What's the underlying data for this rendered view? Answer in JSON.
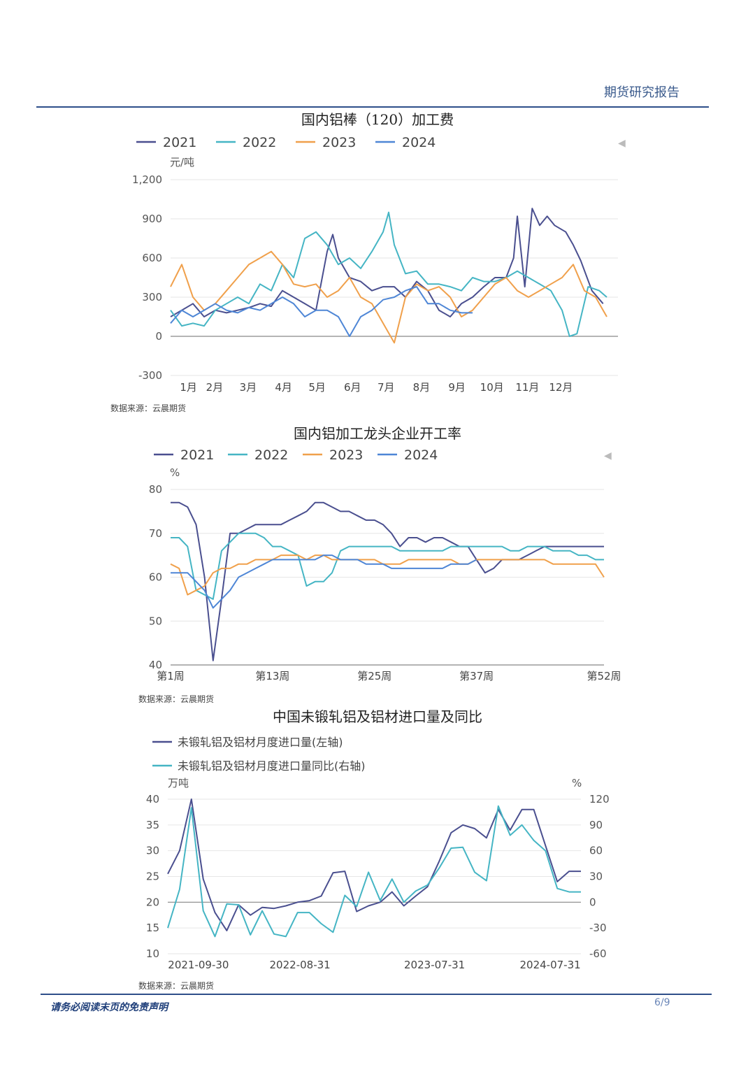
{
  "header": {
    "title": "期货研究报告"
  },
  "footer": {
    "disclaimer": "请务必阅读末页的免责声明",
    "page": "6/9"
  },
  "colors": {
    "2021": "#4a4f8f",
    "2022": "#45b5c4",
    "2023": "#f0a04b",
    "2024": "#4e86d6",
    "axis": "#999999",
    "grid": "#e6e6e6",
    "brand": "#2e4f8a"
  },
  "charts": [
    {
      "title": "国内铝棒（120）加工费",
      "unit": "元/吨",
      "source": "数据来源：云晨期货",
      "legend": [
        "2021",
        "2022",
        "2023",
        "2024"
      ],
      "arrow": "◀"
    },
    {
      "title": "国内铝加工龙头企业开工率",
      "unit": "%",
      "source": "数据来源：云晨期货",
      "legend": [
        "2021",
        "2022",
        "2023",
        "2024"
      ],
      "arrow": "◀"
    },
    {
      "title": "中国未锻轧铝及铝材进口量及同比",
      "unit_left": "万吨",
      "unit_right": "%",
      "source": "数据来源：云晨期货",
      "legend": [
        "未锻轧铝及铝材月度进口量(左轴)",
        "未锻轧铝及铝材月度进口量同比(右轴)"
      ]
    }
  ],
  "chart_data": [
    {
      "type": "line",
      "title": "国内铝棒（120）加工费",
      "ylabel": "元/吨",
      "ylim": [
        -300,
        1200
      ],
      "yticks": [
        "-300",
        "0",
        "300",
        "600",
        "900",
        "1,200"
      ],
      "x_domain": [
        0,
        12
      ],
      "xticks": [
        {
          "label": "1月",
          "x": 0.25
        },
        {
          "label": "2月",
          "x": 0.95
        },
        {
          "label": "3月",
          "x": 1.85
        },
        {
          "label": "4月",
          "x": 2.8
        },
        {
          "label": "5月",
          "x": 3.7
        },
        {
          "label": "6月",
          "x": 4.65
        },
        {
          "label": "7月",
          "x": 5.55
        },
        {
          "label": "8月",
          "x": 6.5
        },
        {
          "label": "9月",
          "x": 7.45
        },
        {
          "label": "10月",
          "x": 8.3
        },
        {
          "label": "11月",
          "x": 9.25
        },
        {
          "label": "12月",
          "x": 10.15
        }
      ],
      "grid": true,
      "legend_position": "top",
      "series": [
        {
          "name": "2021",
          "color_key": "2021",
          "x": [
            0,
            0.3,
            0.6,
            0.9,
            1.2,
            1.5,
            1.8,
            2.1,
            2.4,
            2.7,
            3.0,
            3.3,
            3.6,
            3.9,
            4.2,
            4.35,
            4.5,
            4.8,
            5.1,
            5.4,
            5.7,
            6.0,
            6.3,
            6.6,
            6.9,
            7.2,
            7.5,
            7.8,
            8.1,
            8.4,
            8.7,
            9.0,
            9.2,
            9.3,
            9.5,
            9.7,
            9.9,
            10.1,
            10.3,
            10.6,
            10.8,
            11.0,
            11.3,
            11.6
          ],
          "y": [
            150,
            200,
            250,
            150,
            200,
            180,
            200,
            220,
            250,
            230,
            350,
            300,
            250,
            200,
            650,
            780,
            600,
            450,
            420,
            350,
            380,
            380,
            300,
            420,
            350,
            200,
            150,
            250,
            300,
            380,
            450,
            450,
            600,
            920,
            380,
            980,
            850,
            920,
            850,
            800,
            700,
            580,
            350,
            250
          ]
        },
        {
          "name": "2022",
          "color_key": "2022",
          "x": [
            0,
            0.3,
            0.6,
            0.9,
            1.2,
            1.5,
            1.8,
            2.1,
            2.4,
            2.7,
            3.0,
            3.3,
            3.6,
            3.9,
            4.2,
            4.5,
            4.8,
            5.1,
            5.4,
            5.7,
            5.85,
            6.0,
            6.3,
            6.6,
            6.9,
            7.2,
            7.5,
            7.8,
            8.1,
            8.4,
            8.7,
            9.0,
            9.3,
            9.6,
            9.9,
            10.2,
            10.5,
            10.7,
            10.9,
            11.2,
            11.5,
            11.7
          ],
          "y": [
            200,
            80,
            100,
            80,
            200,
            250,
            300,
            250,
            400,
            350,
            550,
            450,
            750,
            800,
            700,
            550,
            600,
            520,
            650,
            800,
            950,
            700,
            480,
            500,
            400,
            400,
            380,
            350,
            450,
            420,
            420,
            450,
            500,
            450,
            400,
            350,
            200,
            0,
            20,
            380,
            350,
            300
          ]
        },
        {
          "name": "2023",
          "color_key": "2023",
          "x": [
            0,
            0.3,
            0.6,
            0.9,
            1.2,
            1.5,
            1.8,
            2.1,
            2.4,
            2.7,
            3.0,
            3.3,
            3.6,
            3.9,
            4.2,
            4.5,
            4.8,
            5.1,
            5.4,
            5.7,
            6.0,
            6.3,
            6.6,
            6.9,
            7.2,
            7.5,
            7.8,
            8.1,
            8.4,
            8.7,
            9.0,
            9.3,
            9.6,
            9.9,
            10.2,
            10.5,
            10.8,
            11.1,
            11.4,
            11.7
          ],
          "y": [
            380,
            550,
            300,
            200,
            250,
            350,
            450,
            550,
            600,
            650,
            550,
            400,
            380,
            400,
            300,
            350,
            450,
            300,
            250,
            100,
            -50,
            300,
            400,
            350,
            380,
            300,
            150,
            200,
            300,
            400,
            450,
            350,
            300,
            350,
            400,
            450,
            550,
            350,
            300,
            150
          ]
        },
        {
          "name": "2024",
          "color_key": "2024",
          "x": [
            0,
            0.3,
            0.6,
            0.9,
            1.2,
            1.5,
            1.8,
            2.1,
            2.4,
            2.7,
            3.0,
            3.3,
            3.6,
            3.9,
            4.2,
            4.5,
            4.8,
            5.1,
            5.4,
            5.7,
            6.0,
            6.3,
            6.6,
            6.9,
            7.2,
            7.5,
            7.8,
            8.1
          ],
          "y": [
            100,
            200,
            150,
            200,
            250,
            200,
            180,
            220,
            200,
            250,
            300,
            250,
            150,
            200,
            200,
            150,
            0,
            150,
            200,
            280,
            300,
            350,
            380,
            250,
            250,
            200,
            180,
            180
          ]
        }
      ]
    },
    {
      "type": "line",
      "title": "国内铝加工龙头企业开工率",
      "ylabel": "%",
      "ylim": [
        40,
        80
      ],
      "yticks": [
        "40",
        "50",
        "60",
        "70",
        "80"
      ],
      "x_domain": [
        1,
        52
      ],
      "xticks": [
        {
          "label": "第1周",
          "x": 1
        },
        {
          "label": "第13周",
          "x": 13
        },
        {
          "label": "第25周",
          "x": 25
        },
        {
          "label": "第37周",
          "x": 37
        },
        {
          "label": "第52周",
          "x": 52
        }
      ],
      "grid": true,
      "legend_position": "top",
      "series": [
        {
          "name": "2021",
          "color_key": "2021",
          "x": [
            1,
            2,
            3,
            4,
            5,
            6,
            7,
            8,
            9,
            10,
            11,
            12,
            13,
            14,
            15,
            16,
            17,
            18,
            19,
            20,
            21,
            22,
            23,
            24,
            25,
            26,
            27,
            28,
            29,
            30,
            31,
            32,
            33,
            34,
            35,
            36,
            37,
            38,
            39,
            40,
            41,
            42,
            43,
            44,
            45,
            46,
            47,
            48,
            49,
            50,
            51,
            52
          ],
          "y": [
            77,
            77,
            76,
            72,
            60,
            41,
            55,
            70,
            70,
            71,
            72,
            72,
            72,
            72,
            73,
            74,
            75,
            77,
            77,
            76,
            75,
            75,
            74,
            73,
            73,
            72,
            70,
            67,
            69,
            69,
            68,
            69,
            69,
            68,
            67,
            67,
            64,
            61,
            62,
            64,
            64,
            64,
            65,
            66,
            67,
            67,
            67,
            67,
            67,
            67,
            67,
            67
          ]
        },
        {
          "name": "2022",
          "color_key": "2022",
          "x": [
            1,
            2,
            3,
            4,
            5,
            6,
            7,
            8,
            9,
            10,
            11,
            12,
            13,
            14,
            15,
            16,
            17,
            18,
            19,
            20,
            21,
            22,
            23,
            24,
            25,
            26,
            27,
            28,
            29,
            30,
            31,
            32,
            33,
            34,
            35,
            36,
            37,
            38,
            39,
            40,
            41,
            42,
            43,
            44,
            45,
            46,
            47,
            48,
            49,
            50,
            51,
            52
          ],
          "y": [
            69,
            69,
            67,
            57,
            56,
            55,
            66,
            68,
            70,
            70,
            70,
            69,
            67,
            67,
            66,
            65,
            58,
            59,
            59,
            61,
            66,
            67,
            67,
            67,
            67,
            67,
            67,
            66,
            66,
            66,
            66,
            66,
            66,
            67,
            67,
            67,
            67,
            67,
            67,
            67,
            66,
            66,
            67,
            67,
            67,
            66,
            66,
            66,
            65,
            65,
            64,
            64
          ]
        },
        {
          "name": "2023",
          "color_key": "2023",
          "x": [
            1,
            2,
            3,
            4,
            5,
            6,
            7,
            8,
            9,
            10,
            11,
            12,
            13,
            14,
            15,
            16,
            17,
            18,
            19,
            20,
            21,
            22,
            23,
            24,
            25,
            26,
            27,
            28,
            29,
            30,
            31,
            32,
            33,
            34,
            35,
            36,
            37,
            38,
            39,
            40,
            41,
            42,
            43,
            44,
            45,
            46,
            47,
            48,
            49,
            50,
            51,
            52
          ],
          "y": [
            63,
            62,
            56,
            57,
            58,
            61,
            62,
            62,
            63,
            63,
            64,
            64,
            64,
            65,
            65,
            65,
            64,
            65,
            65,
            64,
            64,
            64,
            64,
            64,
            64,
            63,
            63,
            63,
            64,
            64,
            64,
            64,
            64,
            64,
            63,
            63,
            64,
            64,
            64,
            64,
            64,
            64,
            64,
            64,
            64,
            63,
            63,
            63,
            63,
            63,
            63,
            60
          ]
        },
        {
          "name": "2024",
          "color_key": "2024",
          "x": [
            1,
            2,
            3,
            4,
            5,
            6,
            7,
            8,
            9,
            10,
            11,
            12,
            13,
            14,
            15,
            16,
            17,
            18,
            19,
            20,
            21,
            22,
            23,
            24,
            25,
            26,
            27,
            28,
            29,
            30,
            31,
            32,
            33,
            34,
            35,
            36,
            37
          ],
          "y": [
            61,
            61,
            61,
            59,
            57,
            53,
            55,
            57,
            60,
            61,
            62,
            63,
            64,
            64,
            64,
            64,
            64,
            64,
            65,
            65,
            64,
            64,
            64,
            63,
            63,
            63,
            62,
            62,
            62,
            62,
            62,
            62,
            62,
            63,
            63,
            63,
            64
          ]
        }
      ]
    },
    {
      "type": "line",
      "title": "中国未锻轧铝及铝材进口量及同比",
      "ylabel_left": "万吨",
      "ylabel_right": "%",
      "ylim_left": [
        10,
        40
      ],
      "ylim_right": [
        -60,
        120
      ],
      "yticks_left": [
        "10",
        "15",
        "20",
        "25",
        "30",
        "35",
        "40"
      ],
      "yticks_right": [
        "-60",
        "-30",
        "0",
        "30",
        "60",
        "90",
        "120"
      ],
      "x_domain": [
        0,
        35
      ],
      "xticks": [
        {
          "label": "2021-09-30",
          "x": 2.6
        },
        {
          "label": "2022-08-31",
          "x": 11.2
        },
        {
          "label": "2023-07-31",
          "x": 22.6
        },
        {
          "label": "2024-07-31",
          "x": 32.4
        }
      ],
      "grid": true,
      "legend_position": "top",
      "series": [
        {
          "name": "未锻轧铝及铝材月度进口量(左轴)",
          "axis": "left",
          "color_key": "2021",
          "x": [
            0,
            1,
            2,
            3,
            4,
            5,
            6,
            7,
            8,
            9,
            10,
            11,
            12,
            13,
            14,
            15,
            16,
            17,
            18,
            19,
            20,
            21,
            22,
            23,
            24,
            25,
            26,
            27,
            28,
            29,
            30,
            31,
            32,
            33,
            34,
            35
          ],
          "y": [
            25.5,
            30,
            40,
            24.5,
            18,
            14.5,
            19.5,
            17.5,
            19,
            18.8,
            19.3,
            20,
            20.3,
            21.2,
            25.7,
            26,
            18.2,
            19.3,
            20,
            22,
            19.3,
            21.2,
            23,
            28,
            33.5,
            35,
            34.3,
            32.5,
            38,
            34,
            38,
            38,
            31,
            24,
            26,
            26
          ]
        },
        {
          "name": "未锻轧铝及铝材月度进口量同比(右轴)",
          "axis": "right",
          "color_key": "2022",
          "x": [
            0,
            1,
            2,
            3,
            4,
            5,
            6,
            7,
            8,
            9,
            10,
            11,
            12,
            13,
            14,
            15,
            16,
            17,
            18,
            19,
            20,
            21,
            22,
            23,
            24,
            25,
            26,
            27,
            28,
            29,
            30,
            31,
            32,
            33,
            34,
            35
          ],
          "y": [
            -30,
            15,
            110,
            -10,
            -40,
            -2,
            -3,
            -38,
            -10,
            -37,
            -40,
            -12,
            -12,
            -25,
            -35,
            8,
            -5,
            35,
            2,
            27,
            0,
            13,
            20,
            40,
            63,
            64,
            35,
            25,
            112,
            78,
            90,
            72,
            60,
            16,
            12,
            12
          ]
        }
      ]
    }
  ]
}
